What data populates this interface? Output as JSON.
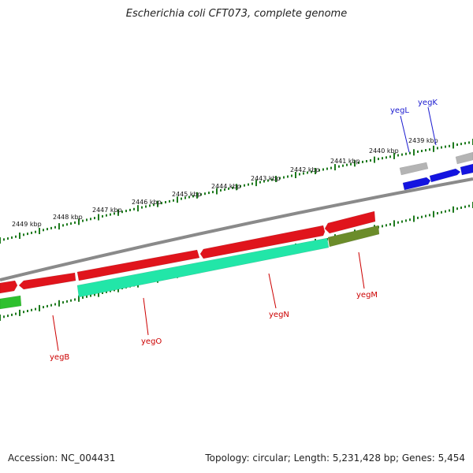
{
  "title": "Escherichia coli CFT073, complete genome",
  "footer": {
    "accession": "Accession: NC_004431",
    "topology": "Topology: circular; Length: 5,231,428 bp; Genes: 5,454"
  },
  "colors": {
    "backbone": "#8a8a8a",
    "tick": "#1e7a1e",
    "forward_gene": "#e0141c",
    "reverse_gene": "#22e6a8",
    "olive_gene": "#6b8c2a",
    "green_gene": "#2ec02e",
    "blue_gene": "#1414e0",
    "gray_gene": "#b4b4b4",
    "red_label": "#cc0000",
    "blue_label": "#1a1ad0"
  },
  "ruler": {
    "labels": [
      "2449 kbp",
      "2448 kbp",
      "2447 kbp",
      "2446 kbp",
      "2445 kbp",
      "2444 kbp",
      "2443 kbp",
      "2442 kbp",
      "2441 kbp",
      "2440 kbp",
      "2439 kbp"
    ]
  },
  "genes": [
    {
      "name": "yegB",
      "color": "red_label"
    },
    {
      "name": "yegO",
      "color": "red_label"
    },
    {
      "name": "yegN",
      "color": "red_label"
    },
    {
      "name": "yegM",
      "color": "red_label"
    },
    {
      "name": "yegL",
      "color": "blue_label"
    },
    {
      "name": "yegK",
      "color": "blue_label"
    }
  ]
}
